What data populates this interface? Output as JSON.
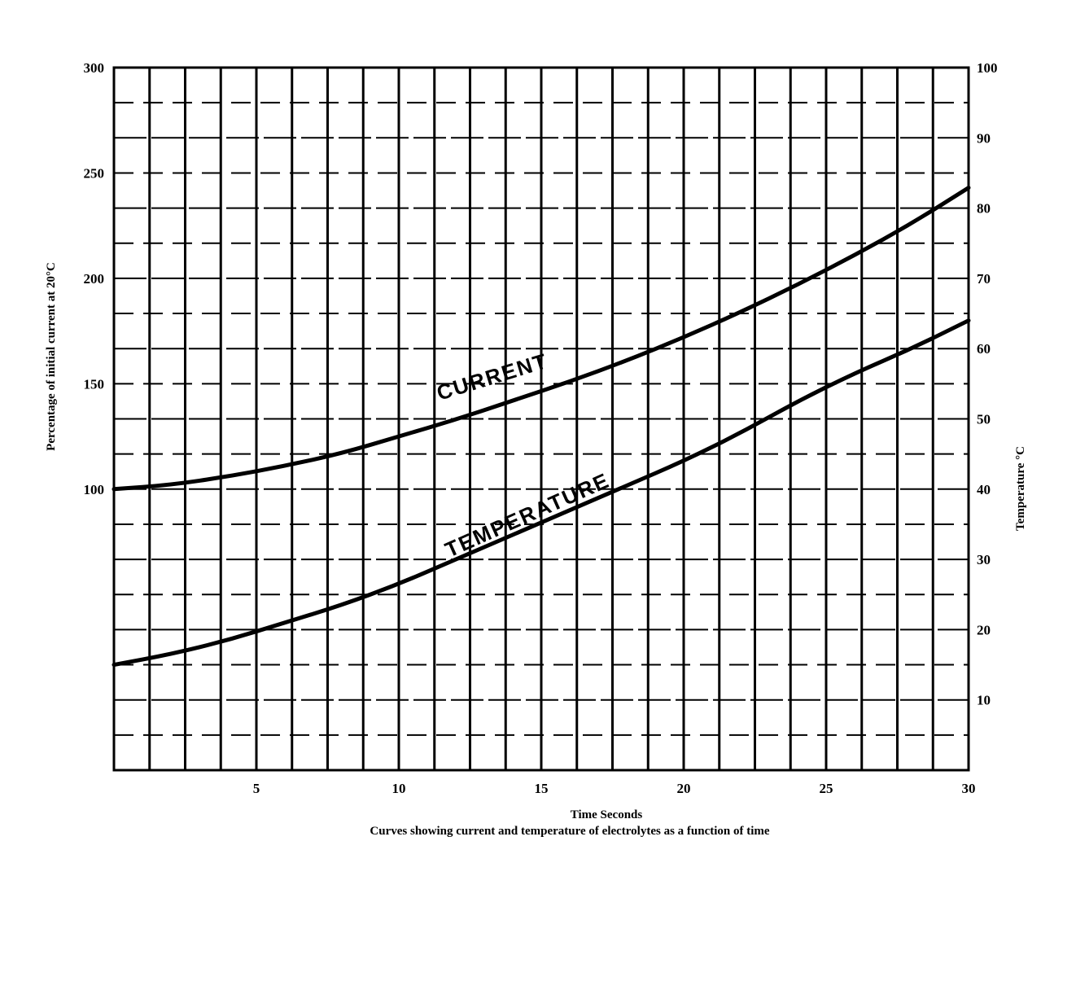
{
  "chart_data": {
    "type": "line",
    "x": [
      0,
      2,
      4,
      6,
      8,
      10,
      12,
      14,
      16,
      18,
      20,
      22,
      24,
      26,
      28,
      30
    ],
    "xlabel": "Time Seconds",
    "xlim": [
      0,
      30
    ],
    "x_ticks": [
      5,
      10,
      15,
      20,
      25,
      30
    ],
    "ylabel_left": "Percentage of initial current at 20°C",
    "ylim_left": [
      0,
      300
    ],
    "y_ticks_left": [
      100,
      150,
      200,
      250,
      300
    ],
    "ylabel_right": "Temperature °C",
    "ylim_right": [
      0,
      100
    ],
    "y_ticks_right": [
      10,
      20,
      30,
      40,
      50,
      60,
      70,
      80,
      90,
      100
    ],
    "series": [
      {
        "name": "CURRENT",
        "axis": "left",
        "values": [
          100,
          102,
          106,
          111,
          117,
          125,
          133,
          142,
          151,
          161,
          172,
          184,
          197,
          211,
          226,
          243
        ]
      },
      {
        "name": "TEMPERATURE",
        "axis": "right",
        "values": [
          15,
          16.5,
          18.5,
          21,
          23.5,
          26.5,
          30,
          33.5,
          37,
          40.5,
          44,
          48,
          52.5,
          56.5,
          60,
          64
        ]
      }
    ],
    "grid": true,
    "caption": "Curves showing current and temperature of electrolytes as a function of time"
  }
}
